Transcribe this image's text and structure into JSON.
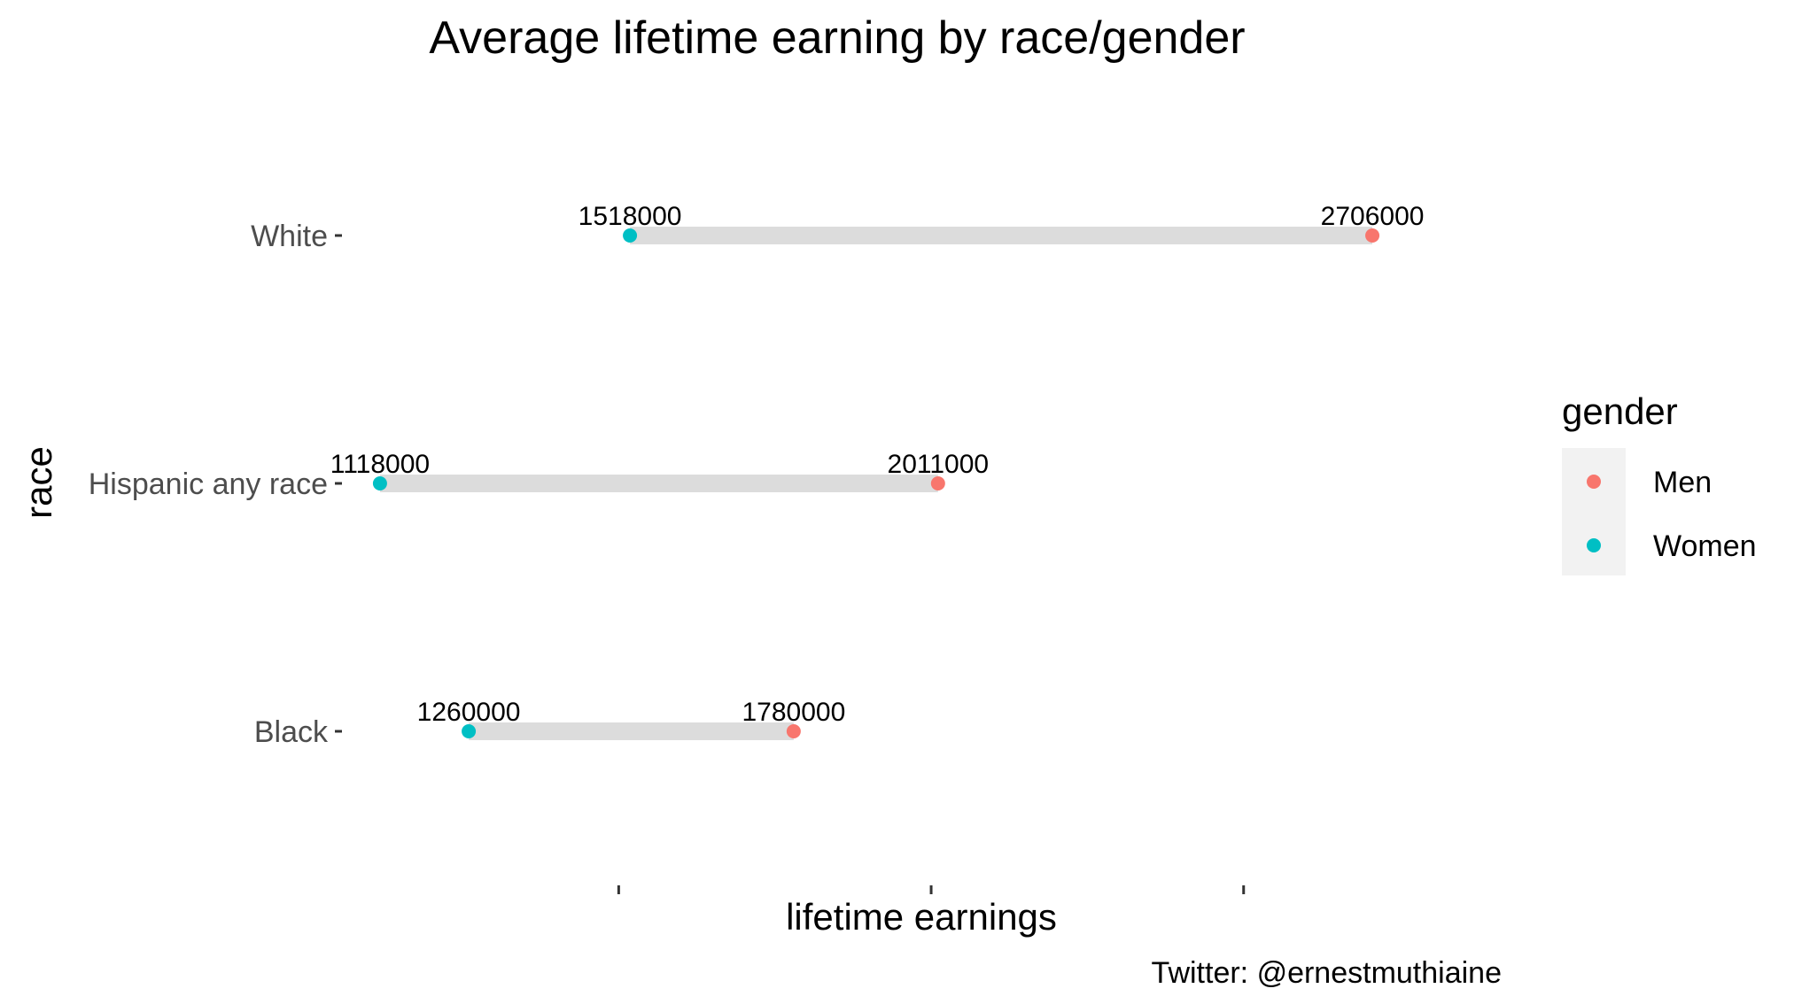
{
  "chart_data": {
    "type": "dumbbell",
    "title": "Average lifetime earning by race/gender",
    "xlabel": "lifetime earnings",
    "ylabel": "race",
    "caption": "Twitter: @ernestmuthiaine",
    "categories": [
      "White",
      "Hispanic any race",
      "Black"
    ],
    "series": [
      {
        "name": "Men",
        "color": "#F8766D",
        "values": [
          2706000,
          2011000,
          1780000
        ]
      },
      {
        "name": "Women",
        "color": "#00BFC4",
        "values": [
          1518000,
          1118000,
          1260000
        ]
      }
    ],
    "data_labels": {
      "Men": [
        "2706000",
        "2011000",
        "1780000"
      ],
      "Women": [
        "1518000",
        "1118000",
        "1260000"
      ]
    },
    "x_ticks": [
      1500000,
      2000000,
      2500000
    ],
    "x_tick_labels_visible": false,
    "xlim": [
      1060000,
      2920000
    ],
    "segment_color": "#DCDCDC",
    "grid": false,
    "legend": {
      "title": "gender",
      "placement": "right",
      "entries": [
        "Men",
        "Women"
      ],
      "key_background": "#F2F2F2"
    }
  }
}
